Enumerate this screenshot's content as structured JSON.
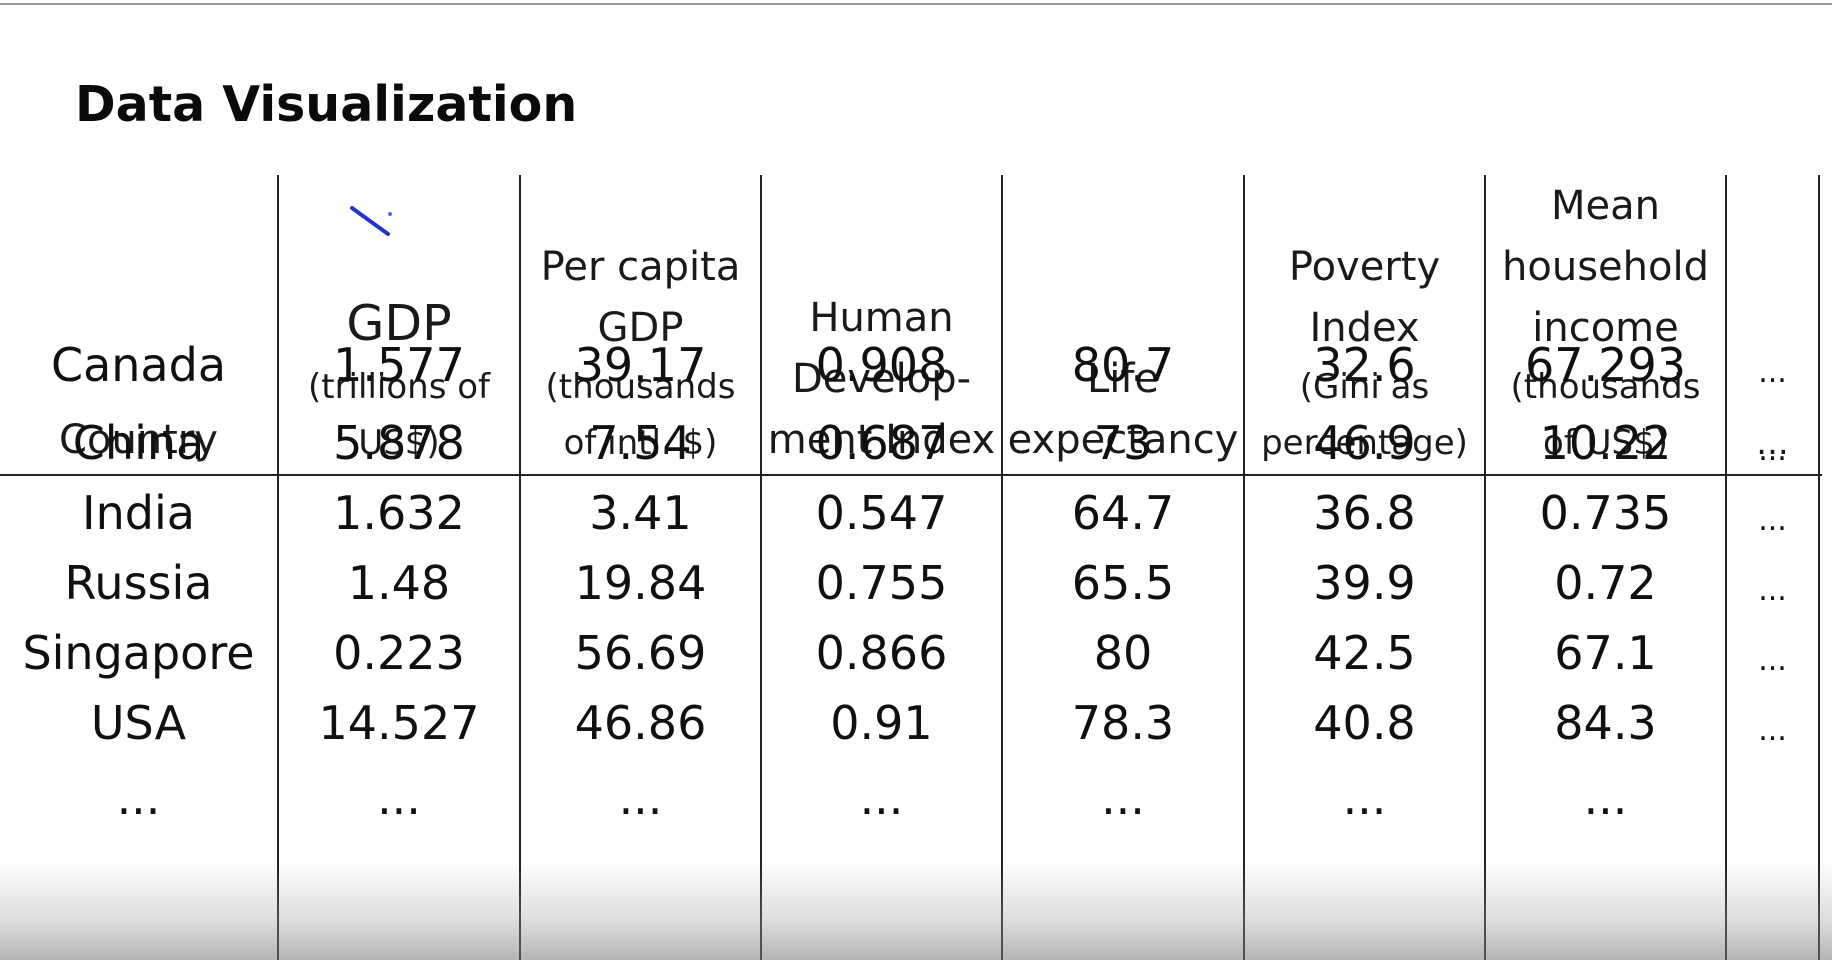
{
  "title": "Data Visualization",
  "table": {
    "headers": [
      {
        "lines": [
          "Country"
        ]
      },
      {
        "main": "GDP",
        "lines": [
          "(trillions of",
          "US$)"
        ]
      },
      {
        "lines": [
          "Per capita",
          "GDP",
          "(thousands",
          "of intl. $)"
        ]
      },
      {
        "lines": [
          "Human",
          "Develop-",
          "ment Index"
        ]
      },
      {
        "lines": [
          "Life",
          "expectancy"
        ]
      },
      {
        "lines": [
          "Poverty",
          "Index",
          "(Gini as",
          "percentage)"
        ]
      },
      {
        "lines": [
          "Mean",
          "household",
          "income",
          "(thousands",
          "of US$)"
        ]
      },
      {
        "lines": [
          "..."
        ]
      }
    ],
    "rows": [
      [
        "Canada",
        "1.577",
        "39.17",
        "0.908",
        "80.7",
        "32.6",
        "67.293",
        "..."
      ],
      [
        "China",
        "5.878",
        "7.54",
        "0.687",
        "73",
        "46.9",
        "10.22",
        "..."
      ],
      [
        "India",
        "1.632",
        "3.41",
        "0.547",
        "64.7",
        "36.8",
        "0.735",
        "..."
      ],
      [
        "Russia",
        "1.48",
        "19.84",
        "0.755",
        "65.5",
        "39.9",
        "0.72",
        "..."
      ],
      [
        "Singapore",
        "0.223",
        "56.69",
        "0.866",
        "80",
        "42.5",
        "67.1",
        "..."
      ],
      [
        "USA",
        "14.527",
        "46.86",
        "0.91",
        "78.3",
        "40.8",
        "84.3",
        "..."
      ],
      [
        "...",
        "...",
        "...",
        "...",
        "...",
        "...",
        "...",
        ""
      ]
    ]
  }
}
